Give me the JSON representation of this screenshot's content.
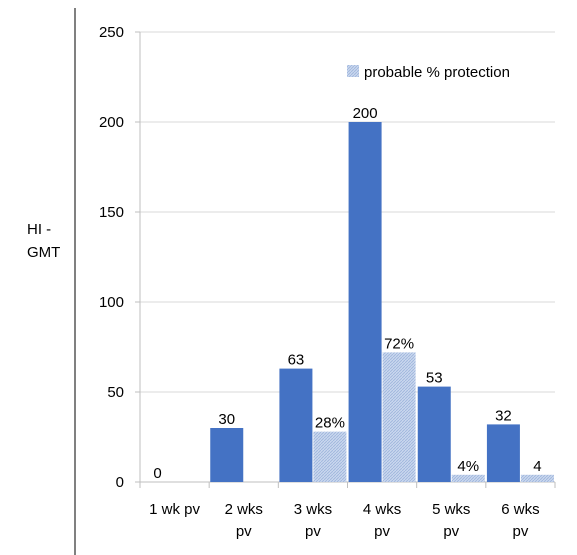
{
  "chart_data": {
    "type": "bar",
    "ylabel": [
      "HI -",
      "GMT"
    ],
    "ylim": [
      0,
      250
    ],
    "yticks": [
      0,
      50,
      100,
      150,
      200,
      250
    ],
    "grid": true,
    "legend_position": "top-right",
    "categories": [
      [
        "1 wk pv"
      ],
      [
        "2 wks",
        "pv"
      ],
      [
        "3 wks",
        "pv"
      ],
      [
        "4 wks",
        "pv"
      ],
      [
        "5 wks",
        "pv"
      ],
      [
        "6 wks",
        "pv"
      ]
    ],
    "series": [
      {
        "values": [
          0,
          30,
          63,
          200,
          53,
          32
        ],
        "labels": [
          "0",
          "30",
          "63",
          "200",
          "53",
          "32"
        ],
        "color": "#4472C4"
      },
      {
        "name": "probable % protection",
        "values": [
          null,
          null,
          28,
          72,
          4,
          4
        ],
        "labels": [
          "",
          "",
          "28%",
          "72%",
          "4%",
          "4"
        ],
        "color": "#B4C7E7"
      }
    ]
  }
}
